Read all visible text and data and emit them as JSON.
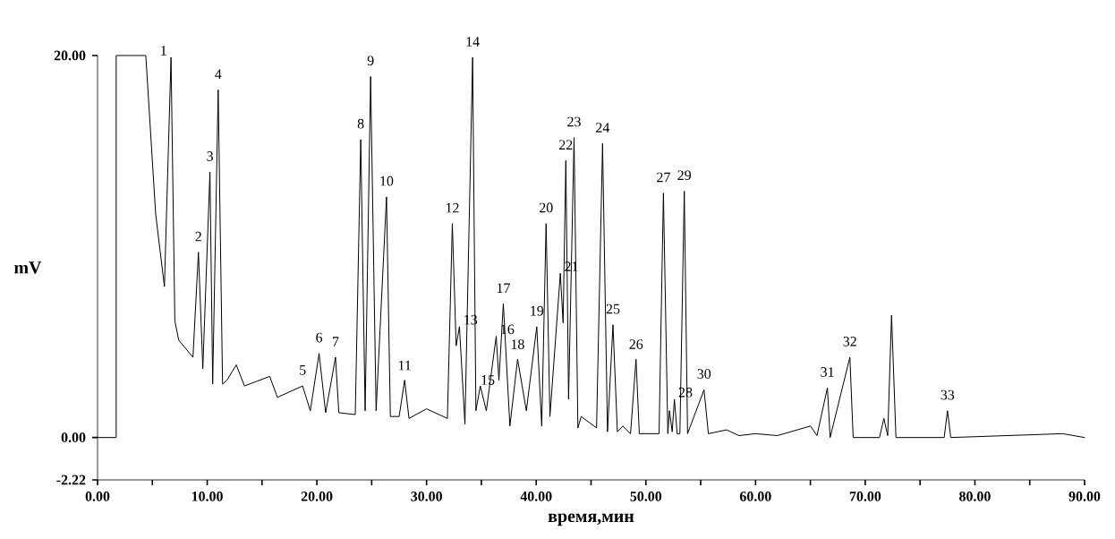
{
  "chart_data": {
    "type": "line",
    "xlabel": "время,мин",
    "ylabel": "mV",
    "xlim": [
      0,
      90
    ],
    "ylim": [
      -2.22,
      20
    ],
    "xticks": [
      {
        "value": 0,
        "label": "0.00"
      },
      {
        "value": 5,
        "label": null
      },
      {
        "value": 10,
        "label": "10.00"
      },
      {
        "value": 15,
        "label": null
      },
      {
        "value": 20,
        "label": "20.00"
      },
      {
        "value": 25,
        "label": null
      },
      {
        "value": 30,
        "label": "30.00"
      },
      {
        "value": 35,
        "label": null
      },
      {
        "value": 40,
        "label": "40.00"
      },
      {
        "value": 45,
        "label": null
      },
      {
        "value": 50,
        "label": "50.00"
      },
      {
        "value": 55,
        "label": null
      },
      {
        "value": 60,
        "label": "60.00"
      },
      {
        "value": 65,
        "label": null
      },
      {
        "value": 70,
        "label": "70.00"
      },
      {
        "value": 75,
        "label": null
      },
      {
        "value": 80,
        "label": "80.00"
      },
      {
        "value": 85,
        "label": null
      },
      {
        "value": 90,
        "label": "90.00"
      }
    ],
    "yticks": [
      -2.22,
      {
        "value": 0,
        "label": "0.00"
      },
      {
        "value": 20,
        "label": "20.00"
      }
    ],
    "grid": false,
    "series": [
      {
        "color": "#000000",
        "x": [
          0,
          1.7,
          1.7,
          4.4,
          5.3,
          6.1,
          6.7,
          7.05,
          7.4,
          8.7,
          9.2,
          9.6,
          10.25,
          10.5,
          11.0,
          11.4,
          11.8,
          12.65,
          13.4,
          15.7,
          16.4,
          18.7,
          19.4,
          20.2,
          20.8,
          21.7,
          22.0,
          23.5,
          24.0,
          24.4,
          24.9,
          25.4,
          26.35,
          26.7,
          27.5,
          28.0,
          28.4,
          30.0,
          31.9,
          32.35,
          32.7,
          33.0,
          33.5,
          34.2,
          34.5,
          34.9,
          35.45,
          36.35,
          36.6,
          37.0,
          37.6,
          38.3,
          39.1,
          40.05,
          40.5,
          40.9,
          41.25,
          42.2,
          42.45,
          42.7,
          42.95,
          43.45,
          43.8,
          44.1,
          45.5,
          46.05,
          46.5,
          47.0,
          47.4,
          47.9,
          48.6,
          49.1,
          49.4,
          51.2,
          51.6,
          52.0,
          52.15,
          52.4,
          52.6,
          52.85,
          53.1,
          53.5,
          53.8,
          55.3,
          55.7,
          57.35,
          58.5,
          60.0,
          62.0,
          65.0,
          65.6,
          66.55,
          66.8,
          68.6,
          68.9,
          71.3,
          71.7,
          72.05,
          72.4,
          72.8,
          77.2,
          77.5,
          77.8,
          88.0,
          90.0
        ],
        "values": [
          0,
          0,
          20,
          20,
          11.7,
          7.9,
          19.9,
          6.1,
          5.1,
          4.2,
          9.7,
          3.6,
          13.9,
          2.8,
          18.2,
          2.8,
          3.0,
          3.8,
          2.7,
          3.2,
          2.1,
          2.7,
          1.4,
          4.4,
          1.3,
          4.2,
          1.3,
          1.2,
          15.6,
          1.4,
          18.9,
          1.4,
          12.6,
          1.1,
          1.1,
          3.0,
          1.0,
          1.5,
          1.0,
          11.2,
          4.8,
          5.8,
          0.7,
          19.9,
          1.4,
          2.7,
          1.4,
          5.3,
          3.0,
          7.0,
          0.6,
          4.1,
          1.4,
          5.8,
          0.6,
          11.2,
          1.1,
          8.6,
          6.0,
          14.5,
          2.0,
          15.7,
          0.5,
          1.1,
          0.5,
          15.4,
          0.3,
          5.9,
          0.3,
          0.6,
          0.2,
          4.1,
          0.2,
          0.2,
          12.8,
          0.2,
          1.4,
          0.3,
          2.0,
          0.2,
          0.2,
          12.9,
          0.2,
          2.5,
          0.2,
          0.4,
          0.1,
          0.2,
          0.1,
          0.6,
          0.1,
          2.6,
          0.0,
          4.2,
          0.0,
          0.0,
          1.0,
          0.1,
          6.4,
          0.0,
          0.0,
          1.4,
          0.0,
          0.2,
          0.0
        ]
      }
    ],
    "annotations": [
      {
        "text": "1",
        "x": 6.7,
        "y": 19.9
      },
      {
        "text": "2",
        "x": 9.2,
        "y": 9.7
      },
      {
        "text": "3",
        "x": 10.25,
        "y": 13.9
      },
      {
        "text": "4",
        "x": 11.0,
        "y": 18.2
      },
      {
        "text": "5",
        "x": 18.7,
        "y": 2.7
      },
      {
        "text": "6",
        "x": 20.2,
        "y": 4.4
      },
      {
        "text": "7",
        "x": 21.7,
        "y": 4.2
      },
      {
        "text": "8",
        "x": 24.0,
        "y": 15.6
      },
      {
        "text": "9",
        "x": 24.9,
        "y": 18.9
      },
      {
        "text": "10",
        "x": 26.35,
        "y": 12.6
      },
      {
        "text": "11",
        "x": 28.0,
        "y": 2.95
      },
      {
        "text": "12",
        "x": 32.35,
        "y": 11.2
      },
      {
        "text": "13",
        "x": 33.0,
        "y": 5.8
      },
      {
        "text": "14",
        "x": 34.2,
        "y": 19.9
      },
      {
        "text": "15",
        "x": 34.9,
        "y": 2.65
      },
      {
        "text": "16",
        "x": 36.35,
        "y": 5.3
      },
      {
        "text": "17",
        "x": 37.0,
        "y": 7.0
      },
      {
        "text": "18",
        "x": 38.3,
        "y": 4.05
      },
      {
        "text": "19",
        "x": 40.05,
        "y": 5.8
      },
      {
        "text": "20",
        "x": 40.9,
        "y": 11.2
      },
      {
        "text": "21",
        "x": 42.2,
        "y": 8.6
      },
      {
        "text": "22",
        "x": 42.7,
        "y": 14.5
      },
      {
        "text": "23",
        "x": 43.45,
        "y": 15.7
      },
      {
        "text": "24",
        "x": 46.05,
        "y": 15.4
      },
      {
        "text": "25",
        "x": 47.0,
        "y": 5.9
      },
      {
        "text": "26",
        "x": 49.1,
        "y": 4.05
      },
      {
        "text": "27",
        "x": 51.6,
        "y": 12.8
      },
      {
        "text": "28",
        "x": 52.6,
        "y": 2.0
      },
      {
        "text": "29",
        "x": 53.5,
        "y": 12.9
      },
      {
        "text": "30",
        "x": 55.3,
        "y": 2.5
      },
      {
        "text": "31",
        "x": 66.55,
        "y": 2.6
      },
      {
        "text": "32",
        "x": 68.6,
        "y": 4.2
      },
      {
        "text": "33",
        "x": 77.5,
        "y": 1.4
      }
    ]
  }
}
